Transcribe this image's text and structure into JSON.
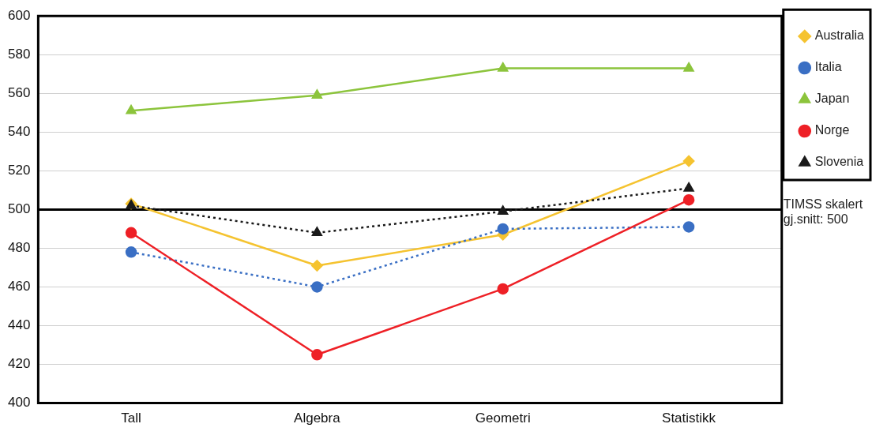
{
  "chart_data": {
    "type": "line",
    "categories": [
      "Tall",
      "Algebra",
      "Geometri",
      "Statistikk"
    ],
    "series": [
      {
        "name": "Australia",
        "color": "#f5c330",
        "values": [
          503,
          471,
          487,
          525
        ],
        "marker": "diamond",
        "line_style": "solid"
      },
      {
        "name": "Italia",
        "color": "#3a6fc4",
        "values": [
          478,
          460,
          490,
          491
        ],
        "marker": "circle",
        "line_style": "dotted"
      },
      {
        "name": "Japan",
        "color": "#8cc43c",
        "values": [
          551,
          559,
          573,
          573
        ],
        "marker": "triangle",
        "line_style": "solid"
      },
      {
        "name": "Norge",
        "color": "#ee2026",
        "values": [
          488,
          425,
          459,
          505
        ],
        "marker": "circle",
        "line_style": "solid"
      },
      {
        "name": "Slovenia",
        "color": "#1a1a1a",
        "values": [
          502,
          488,
          499,
          511
        ],
        "marker": "triangle",
        "line_style": "dotted"
      }
    ],
    "ylim": [
      400,
      600
    ],
    "yticks": [
      400,
      420,
      440,
      460,
      480,
      500,
      520,
      540,
      560,
      580,
      600
    ],
    "grid": "y",
    "legend": "top right",
    "ref_lines": [
      {
        "axis": "y",
        "value": 500,
        "color": "#000000"
      }
    ],
    "annotations": [
      "TIMSS skalert gj.snitt: 500"
    ]
  }
}
